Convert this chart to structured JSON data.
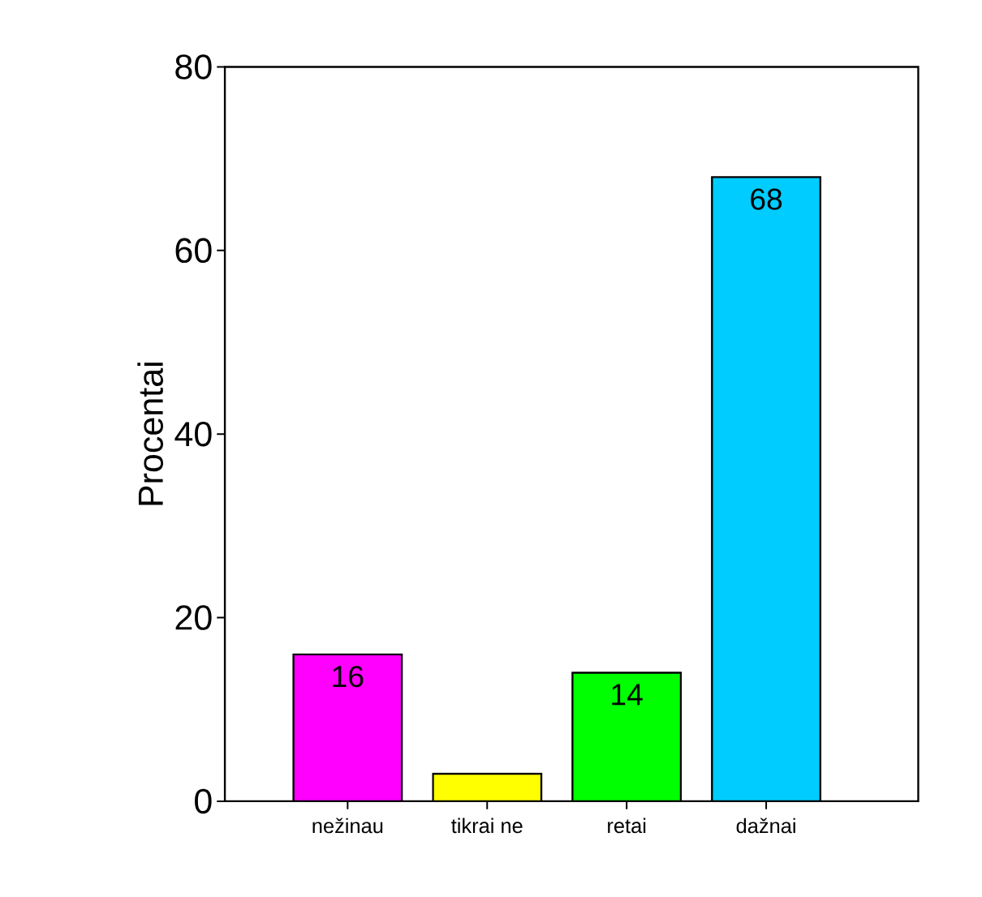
{
  "chart_data": {
    "type": "bar",
    "ylabel": "Procentai",
    "categories": [
      "nežinau",
      "tikrai ne",
      "retai",
      "dažnai"
    ],
    "values": [
      16,
      3,
      14,
      68
    ],
    "colors": [
      "#ff00ff",
      "#ffff00",
      "#00ff00",
      "#00ccff"
    ],
    "value_labels": [
      "16",
      null,
      "14",
      "68"
    ],
    "ylim": [
      0,
      80
    ],
    "yticks": [
      0,
      20,
      40,
      60,
      80
    ]
  }
}
